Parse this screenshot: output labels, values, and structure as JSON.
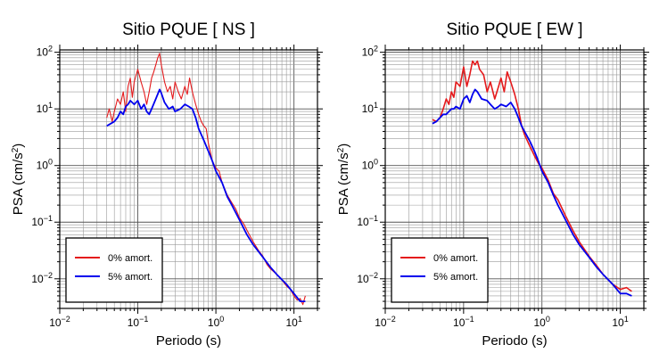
{
  "chart_data": [
    {
      "type": "line",
      "title": "Sitio PQUE [ NS ]",
      "xlabel": "Periodo (s)",
      "ylabel": "PSA (cm/s",
      "ylabel_sup": "2",
      "ylabel_close": ")",
      "xscale": "log",
      "yscale": "log",
      "xlim": [
        0.01,
        20
      ],
      "ylim": [
        0.003,
        110
      ],
      "grid": true,
      "legend_position": "bottom-left",
      "xticks": [
        {
          "base": "10",
          "exp": "−2"
        },
        {
          "base": "10",
          "exp": "−1"
        },
        {
          "base": "10",
          "exp": "0"
        },
        {
          "base": "10",
          "exp": "1"
        }
      ],
      "yticks": [
        {
          "base": "10",
          "exp": "−2"
        },
        {
          "base": "10",
          "exp": "−1"
        },
        {
          "base": "10",
          "exp": "0"
        },
        {
          "base": "10",
          "exp": "1"
        },
        {
          "base": "10",
          "exp": "2"
        }
      ],
      "series": [
        {
          "name": "0% amort.",
          "color": "#e41a1c",
          "x": [
            0.04,
            0.043,
            0.047,
            0.05,
            0.055,
            0.06,
            0.065,
            0.07,
            0.075,
            0.08,
            0.085,
            0.09,
            0.1,
            0.11,
            0.12,
            0.13,
            0.14,
            0.15,
            0.16,
            0.17,
            0.18,
            0.19,
            0.2,
            0.22,
            0.24,
            0.26,
            0.28,
            0.3,
            0.33,
            0.36,
            0.4,
            0.43,
            0.46,
            0.5,
            0.55,
            0.6,
            0.65,
            0.7,
            0.75,
            0.8,
            0.9,
            1.0,
            1.1,
            1.2,
            1.4,
            1.6,
            1.8,
            2.0,
            2.3,
            2.6,
            3.0,
            3.5,
            4.0,
            4.5,
            5.0,
            6.0,
            7.0,
            8.0,
            9.0,
            10.0,
            11.0,
            12.0,
            13.0,
            14.0
          ],
          "y": [
            7,
            10,
            6,
            9,
            15,
            12,
            20,
            9,
            25,
            35,
            16,
            30,
            50,
            30,
            20,
            12,
            20,
            35,
            45,
            60,
            80,
            95,
            60,
            30,
            20,
            25,
            15,
            30,
            20,
            15,
            25,
            18,
            35,
            20,
            12,
            8,
            6,
            5,
            4.5,
            2.5,
            1.2,
            0.9,
            0.8,
            0.5,
            0.3,
            0.22,
            0.17,
            0.12,
            0.09,
            0.065,
            0.045,
            0.032,
            0.025,
            0.018,
            0.015,
            0.012,
            0.0095,
            0.0075,
            0.0065,
            0.005,
            0.0042,
            0.0045,
            0.0035,
            0.005
          ]
        },
        {
          "name": "5% amort.",
          "color": "#0000ee",
          "x": [
            0.04,
            0.045,
            0.05,
            0.055,
            0.06,
            0.065,
            0.07,
            0.075,
            0.08,
            0.09,
            0.1,
            0.11,
            0.12,
            0.13,
            0.14,
            0.15,
            0.17,
            0.19,
            0.2,
            0.22,
            0.25,
            0.28,
            0.3,
            0.35,
            0.4,
            0.45,
            0.5,
            0.55,
            0.6,
            0.7,
            0.8,
            0.9,
            1.0,
            1.2,
            1.4,
            1.6,
            2.0,
            2.5,
            3.0,
            4.0,
            5.0,
            6.0,
            8.0,
            10.0,
            12.0,
            14.0
          ],
          "y": [
            5,
            5.5,
            6,
            7,
            9,
            8,
            11,
            12,
            14,
            12,
            14,
            10,
            12,
            9,
            8,
            10,
            15,
            22,
            19,
            13,
            10,
            11,
            9,
            10,
            12,
            11,
            10,
            7,
            4.5,
            2.8,
            1.8,
            1.2,
            0.8,
            0.5,
            0.28,
            0.2,
            0.11,
            0.06,
            0.04,
            0.024,
            0.016,
            0.012,
            0.008,
            0.0055,
            0.004,
            0.004
          ]
        }
      ]
    },
    {
      "type": "line",
      "title": "Sitio PQUE [ EW ]",
      "xlabel": "Periodo (s)",
      "ylabel": "PSA (cm/s",
      "ylabel_sup": "2",
      "ylabel_close": ")",
      "xscale": "log",
      "yscale": "log",
      "xlim": [
        0.01,
        20
      ],
      "ylim": [
        0.003,
        110
      ],
      "grid": true,
      "legend_position": "bottom-left",
      "xticks": [
        {
          "base": "10",
          "exp": "−2"
        },
        {
          "base": "10",
          "exp": "−1"
        },
        {
          "base": "10",
          "exp": "0"
        },
        {
          "base": "10",
          "exp": "1"
        }
      ],
      "yticks": [
        {
          "base": "10",
          "exp": "−2"
        },
        {
          "base": "10",
          "exp": "−1"
        },
        {
          "base": "10",
          "exp": "0"
        },
        {
          "base": "10",
          "exp": "1"
        },
        {
          "base": "10",
          "exp": "2"
        }
      ],
      "series": [
        {
          "name": "0% amort.",
          "color": "#e41a1c",
          "x": [
            0.04,
            0.045,
            0.05,
            0.055,
            0.06,
            0.065,
            0.07,
            0.075,
            0.08,
            0.09,
            0.1,
            0.11,
            0.12,
            0.13,
            0.14,
            0.15,
            0.16,
            0.18,
            0.2,
            0.22,
            0.25,
            0.28,
            0.3,
            0.33,
            0.36,
            0.4,
            0.45,
            0.5,
            0.55,
            0.6,
            0.7,
            0.8,
            0.9,
            1.0,
            1.2,
            1.4,
            1.6,
            2.0,
            2.5,
            3.0,
            4.0,
            5.0,
            6.0,
            8.0,
            10.0,
            12.0,
            14.0
          ],
          "y": [
            6.5,
            6,
            7,
            10,
            15,
            12,
            20,
            16,
            30,
            25,
            55,
            25,
            40,
            70,
            60,
            70,
            50,
            40,
            20,
            30,
            15,
            25,
            35,
            20,
            45,
            30,
            18,
            10,
            5,
            3.5,
            2.2,
            1.5,
            1.1,
            0.9,
            0.55,
            0.32,
            0.25,
            0.13,
            0.07,
            0.045,
            0.025,
            0.017,
            0.012,
            0.008,
            0.0065,
            0.007,
            0.006
          ]
        },
        {
          "name": "5% amort.",
          "color": "#0000ee",
          "x": [
            0.04,
            0.045,
            0.05,
            0.055,
            0.06,
            0.065,
            0.07,
            0.075,
            0.08,
            0.09,
            0.1,
            0.11,
            0.12,
            0.13,
            0.14,
            0.15,
            0.17,
            0.2,
            0.22,
            0.25,
            0.28,
            0.3,
            0.35,
            0.4,
            0.45,
            0.5,
            0.55,
            0.6,
            0.7,
            0.8,
            0.9,
            1.0,
            1.2,
            1.4,
            1.6,
            2.0,
            2.5,
            3.0,
            4.0,
            5.0,
            6.0,
            8.0,
            10.0,
            12.0,
            14.0
          ],
          "y": [
            5.5,
            6,
            7,
            8,
            8,
            9,
            10,
            10,
            11,
            10,
            15,
            17,
            13,
            18,
            22,
            20,
            15,
            14,
            12,
            10,
            11,
            12,
            11,
            13,
            10,
            7,
            5,
            4,
            2.7,
            1.8,
            1.2,
            0.8,
            0.5,
            0.3,
            0.2,
            0.11,
            0.06,
            0.04,
            0.024,
            0.016,
            0.012,
            0.008,
            0.0055,
            0.0055,
            0.005
          ]
        }
      ]
    }
  ]
}
